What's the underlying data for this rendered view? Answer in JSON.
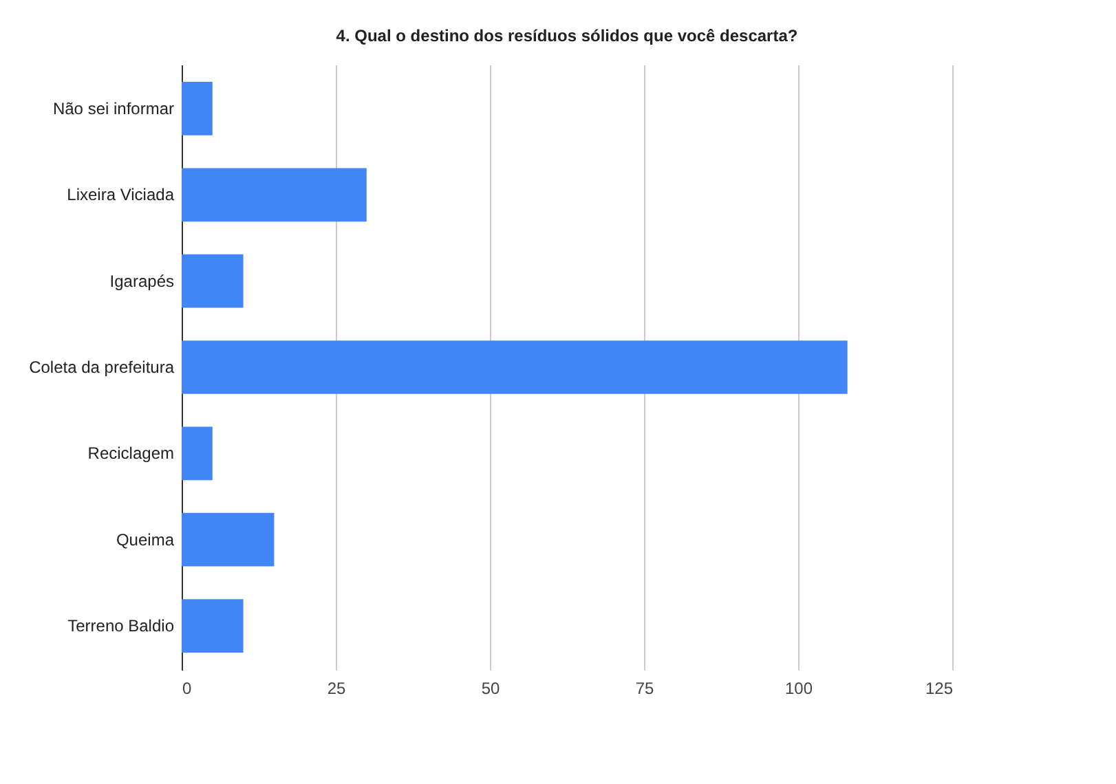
{
  "chart_data": {
    "type": "bar",
    "orientation": "horizontal",
    "title": "4. Qual o destino dos resíduos sólidos que você descarta?",
    "categories": [
      "Não sei informar",
      "Lixeira Viciada",
      "Igarapés",
      "Coleta da prefeitura",
      "Reciclagem",
      "Queima",
      "Terreno Baldio"
    ],
    "values": [
      5,
      30,
      10,
      108,
      5,
      15,
      10
    ],
    "color": "#4285f4",
    "xlim": [
      0,
      125
    ],
    "xticks": [
      0,
      25,
      50,
      75,
      100,
      125
    ],
    "grid": "x"
  }
}
